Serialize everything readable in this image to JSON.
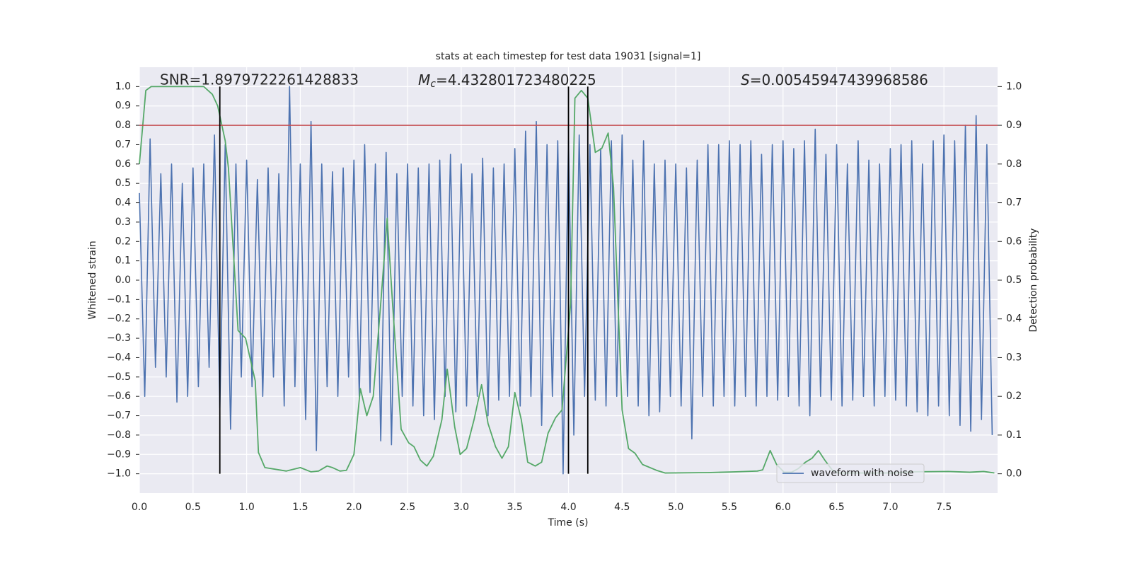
{
  "chart_data": {
    "type": "line",
    "title": "stats at each timestep for test data 19031 [signal=1]",
    "xlabel": "Time (s)",
    "ylabel": "Whitened strain",
    "y2label": "Detection probability",
    "xlim": [
      0,
      8.0
    ],
    "ylim": [
      -1.1,
      1.1
    ],
    "y2lim": [
      -0.05,
      1.05
    ],
    "grid": true,
    "legend": "lower right",
    "xticks": [
      {
        "value": 0,
        "label": "0.0"
      },
      {
        "value": 0.5,
        "label": "0.5"
      },
      {
        "value": 1,
        "label": "1.0"
      },
      {
        "value": 1.5,
        "label": "1.5"
      },
      {
        "value": 2,
        "label": "2.0"
      },
      {
        "value": 2.5,
        "label": "2.5"
      },
      {
        "value": 3,
        "label": "3.0"
      },
      {
        "value": 3.5,
        "label": "3.5"
      },
      {
        "value": 4,
        "label": "4.0"
      },
      {
        "value": 4.5,
        "label": "4.5"
      },
      {
        "value": 5,
        "label": "5.0"
      },
      {
        "value": 5.5,
        "label": "5.5"
      },
      {
        "value": 6,
        "label": "6.0"
      },
      {
        "value": 6.5,
        "label": "6.5"
      },
      {
        "value": 7,
        "label": "7.0"
      },
      {
        "value": 7.5,
        "label": "7.5"
      }
    ],
    "yticks": [
      {
        "value": -1,
        "label": "−1.0"
      },
      {
        "value": -0.9,
        "label": "−0.9"
      },
      {
        "value": -0.8,
        "label": "−0.8"
      },
      {
        "value": -0.7,
        "label": "−0.7"
      },
      {
        "value": -0.6,
        "label": "−0.6"
      },
      {
        "value": -0.5,
        "label": "−0.5"
      },
      {
        "value": -0.4,
        "label": "−0.4"
      },
      {
        "value": -0.3,
        "label": "−0.3"
      },
      {
        "value": -0.2,
        "label": "−0.2"
      },
      {
        "value": -0.1,
        "label": "−0.1"
      },
      {
        "value": 0,
        "label": "0.0"
      },
      {
        "value": 0.1,
        "label": "0.1"
      },
      {
        "value": 0.2,
        "label": "0.2"
      },
      {
        "value": 0.3,
        "label": "0.3"
      },
      {
        "value": 0.4,
        "label": "0.4"
      },
      {
        "value": 0.5,
        "label": "0.5"
      },
      {
        "value": 0.6,
        "label": "0.6"
      },
      {
        "value": 0.7,
        "label": "0.7"
      },
      {
        "value": 0.8,
        "label": "0.8"
      },
      {
        "value": 0.9,
        "label": "0.9"
      },
      {
        "value": 1,
        "label": "1.0"
      }
    ],
    "y2ticks": [
      {
        "value": 0,
        "label": "0.0"
      },
      {
        "value": 0.1,
        "label": "0.1"
      },
      {
        "value": 0.2,
        "label": "0.2"
      },
      {
        "value": 0.3,
        "label": "0.3"
      },
      {
        "value": 0.4,
        "label": "0.4"
      },
      {
        "value": 0.5,
        "label": "0.5"
      },
      {
        "value": 0.6,
        "label": "0.6"
      },
      {
        "value": 0.7,
        "label": "0.7"
      },
      {
        "value": 0.8,
        "label": "0.8"
      },
      {
        "value": 0.9,
        "label": "0.9"
      },
      {
        "value": 1,
        "label": "1.0"
      }
    ],
    "annotations": [
      {
        "text": "SNR=1.8979722261428833"
      },
      {
        "symbol": "M",
        "subscript": "c",
        "text": "=4.432801723480225"
      },
      {
        "symbol": "S",
        "text": "=0.00545947439968586"
      }
    ],
    "series": [
      {
        "name": "waveform with noise",
        "color": "#4c72b0",
        "x": [
          0.0,
          0.05,
          0.1,
          0.15,
          0.2,
          0.25,
          0.3,
          0.35,
          0.4,
          0.45,
          0.5,
          0.55,
          0.6,
          0.65,
          0.7,
          0.75,
          0.8,
          0.85,
          0.9,
          0.95,
          1.0,
          1.05,
          1.1,
          1.15,
          1.2,
          1.25,
          1.3,
          1.35,
          1.4,
          1.45,
          1.5,
          1.55,
          1.6,
          1.65,
          1.7,
          1.75,
          1.8,
          1.85,
          1.9,
          1.95,
          2.0,
          2.05,
          2.1,
          2.15,
          2.2,
          2.25,
          2.3,
          2.35,
          2.4,
          2.45,
          2.5,
          2.55,
          2.6,
          2.65,
          2.7,
          2.75,
          2.8,
          2.85,
          2.9,
          2.95,
          3.0,
          3.05,
          3.1,
          3.15,
          3.2,
          3.25,
          3.3,
          3.35,
          3.4,
          3.45,
          3.5,
          3.55,
          3.6,
          3.65,
          3.7,
          3.75,
          3.8,
          3.85,
          3.9,
          3.95,
          4.0,
          4.05,
          4.1,
          4.15,
          4.2,
          4.25,
          4.3,
          4.35,
          4.4,
          4.45,
          4.5,
          4.55,
          4.6,
          4.65,
          4.7,
          4.75,
          4.8,
          4.85,
          4.9,
          4.95,
          5.0,
          5.05,
          5.1,
          5.15,
          5.2,
          5.25,
          5.3,
          5.35,
          5.4,
          5.45,
          5.5,
          5.55,
          5.6,
          5.65,
          5.7,
          5.75,
          5.8,
          5.85,
          5.9,
          5.95,
          6.0,
          6.05,
          6.1,
          6.15,
          6.2,
          6.25,
          6.3,
          6.35,
          6.4,
          6.45,
          6.5,
          6.55,
          6.6,
          6.65,
          6.7,
          6.75,
          6.8,
          6.85,
          6.9,
          6.95,
          7.0,
          7.05,
          7.1,
          7.15,
          7.2,
          7.25,
          7.3,
          7.35,
          7.4,
          7.45,
          7.5,
          7.55,
          7.6,
          7.65,
          7.7,
          7.75,
          7.8,
          7.85,
          7.9,
          7.95
        ],
        "values": [
          0.45,
          -0.6,
          0.73,
          -0.45,
          0.55,
          -0.5,
          0.6,
          -0.63,
          0.5,
          -0.6,
          0.58,
          -0.55,
          0.6,
          -0.45,
          0.75,
          -0.66,
          0.7,
          -0.77,
          0.6,
          -0.5,
          0.62,
          -0.55,
          0.52,
          -0.6,
          0.58,
          -0.5,
          0.55,
          -0.65,
          1.0,
          -0.55,
          0.6,
          -0.72,
          0.82,
          -0.88,
          0.6,
          -0.55,
          0.56,
          -0.6,
          0.58,
          -0.5,
          0.62,
          -0.6,
          0.7,
          -0.58,
          0.6,
          -0.83,
          0.66,
          -0.85,
          0.55,
          -0.6,
          0.6,
          -0.65,
          0.58,
          -0.7,
          0.6,
          -0.72,
          0.62,
          -0.6,
          0.65,
          -0.68,
          0.6,
          -0.65,
          0.55,
          -0.6,
          0.63,
          -0.7,
          0.58,
          -0.62,
          0.6,
          -0.6,
          0.68,
          -0.65,
          0.77,
          -0.6,
          0.82,
          -0.75,
          0.7,
          -0.6,
          0.72,
          -1.0,
          0.72,
          -0.8,
          0.75,
          -0.6,
          0.7,
          -0.62,
          0.68,
          -0.65,
          0.72,
          -0.6,
          0.75,
          -0.6,
          0.62,
          -0.65,
          0.72,
          -0.7,
          0.6,
          -0.68,
          0.62,
          -0.6,
          0.6,
          -0.65,
          0.58,
          -0.82,
          0.62,
          -0.6,
          0.7,
          -0.65,
          0.7,
          -0.6,
          0.72,
          -0.65,
          0.7,
          -0.6,
          0.72,
          -0.65,
          0.65,
          -0.6,
          0.7,
          -0.62,
          0.72,
          -0.6,
          0.68,
          -0.65,
          0.72,
          -0.7,
          0.78,
          -0.6,
          0.65,
          -0.62,
          0.7,
          -0.65,
          0.6,
          -0.62,
          0.72,
          -0.6,
          0.62,
          -0.65,
          0.6,
          -0.6,
          0.68,
          -0.62,
          0.7,
          -0.65,
          0.72,
          -0.68,
          0.6,
          -0.7,
          0.72,
          -0.65,
          0.75,
          -0.7,
          0.72,
          -0.75,
          0.8,
          -0.78,
          0.85,
          -0.72,
          0.7,
          -0.8
        ]
      },
      {
        "color": "#55a868",
        "axis": "y2",
        "x": [
          0.0,
          0.06,
          0.11,
          0.6,
          0.68,
          0.73,
          0.8,
          0.83,
          0.92,
          0.99,
          1.08,
          1.11,
          1.17,
          1.37,
          1.5,
          1.6,
          1.67,
          1.75,
          1.8,
          1.87,
          1.93,
          2.0,
          2.06,
          2.12,
          2.18,
          2.25,
          2.31,
          2.36,
          2.44,
          2.51,
          2.56,
          2.62,
          2.68,
          2.74,
          2.82,
          2.87,
          2.94,
          2.99,
          3.05,
          3.12,
          3.19,
          3.25,
          3.32,
          3.38,
          3.44,
          3.5,
          3.56,
          3.62,
          3.69,
          3.75,
          3.81,
          3.88,
          3.94,
          4.02,
          4.06,
          4.12,
          4.18,
          4.25,
          4.31,
          4.37,
          4.42,
          4.5,
          4.56,
          4.62,
          4.69,
          4.82,
          4.9,
          5.3,
          5.56,
          5.76,
          5.81,
          5.88,
          5.94,
          6.01,
          6.08,
          6.14,
          6.21,
          6.27,
          6.33,
          6.39,
          6.46,
          6.52,
          7.01,
          7.21,
          7.54,
          7.74,
          7.87,
          7.97
        ],
        "values": [
          0.8,
          0.99,
          1.0,
          1.0,
          0.98,
          0.95,
          0.86,
          0.79,
          0.37,
          0.35,
          0.24,
          0.055,
          0.016,
          0.007,
          0.016,
          0.005,
          0.007,
          0.02,
          0.016,
          0.007,
          0.009,
          0.05,
          0.22,
          0.15,
          0.2,
          0.44,
          0.66,
          0.44,
          0.115,
          0.08,
          0.07,
          0.035,
          0.02,
          0.045,
          0.14,
          0.27,
          0.12,
          0.05,
          0.065,
          0.14,
          0.23,
          0.13,
          0.07,
          0.04,
          0.07,
          0.21,
          0.14,
          0.03,
          0.02,
          0.03,
          0.105,
          0.145,
          0.165,
          0.44,
          0.97,
          0.99,
          0.97,
          0.83,
          0.84,
          0.88,
          0.74,
          0.165,
          0.065,
          0.053,
          0.024,
          0.009,
          0.002,
          0.003,
          0.005,
          0.007,
          0.01,
          0.06,
          0.024,
          0.004,
          0.004,
          0.013,
          0.03,
          0.04,
          0.06,
          0.035,
          0.009,
          0.002,
          0.002,
          0.005,
          0.006,
          0.004,
          0.006,
          0.002
        ]
      }
    ],
    "vlines": [
      {
        "x": 0.75,
        "ymin": -1,
        "ymax": 1
      },
      {
        "x": 4.0,
        "ymin": -1,
        "ymax": 1
      },
      {
        "x": 4.18,
        "ymin": -1,
        "ymax": 1
      }
    ],
    "vline_color": "#000000",
    "hline": {
      "y": 0.9,
      "axis": "y2",
      "color": "#c44e52"
    }
  }
}
